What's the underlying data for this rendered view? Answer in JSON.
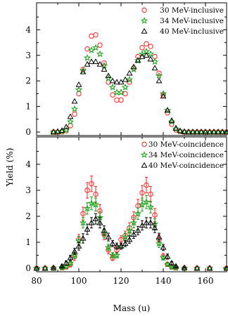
{
  "chart_data": [
    {
      "type": "scatter",
      "panel": "top",
      "xlim": [
        80,
        170
      ],
      "ylim": [
        0,
        5
      ],
      "yticks": [
        "0",
        "1",
        "2",
        "3",
        "4"
      ],
      "xticks": [
        "80",
        "100",
        "120",
        "140",
        "160"
      ],
      "xlabel": "Mass (u)",
      "ylabel": "Yield (%)",
      "legend_position": "top-right",
      "x": [
        88,
        90,
        92,
        94,
        96,
        98,
        100,
        102,
        104,
        106,
        108,
        110,
        112,
        114,
        116,
        118,
        120,
        122,
        124,
        126,
        128,
        130,
        132,
        134,
        136,
        138,
        140,
        142,
        144,
        146,
        148,
        150,
        152,
        154,
        156,
        158,
        160,
        162,
        164,
        166,
        168,
        170
      ],
      "series": [
        {
          "name": "30 MeV-inclusive",
          "marker": "circle",
          "color": "#ff2020",
          "values": [
            0,
            0,
            0.01,
            0.05,
            0.25,
            0.7,
            1.5,
            2.45,
            3.25,
            3.75,
            3.8,
            3.4,
            2.7,
            1.95,
            1.45,
            1.25,
            1.25,
            1.5,
            1.95,
            2.5,
            2.95,
            3.3,
            3.45,
            3.35,
            2.95,
            2.3,
            1.45,
            0.75,
            0.3,
            0.08,
            0.02,
            0,
            0,
            0,
            0,
            0,
            0,
            0,
            0,
            0,
            0,
            0
          ]
        },
        {
          "name": "34 MeV-inclusive",
          "marker": "star",
          "color": "#10a010",
          "values": [
            0,
            0.01,
            0.02,
            0.08,
            0.4,
            0.9,
            1.65,
            2.4,
            2.9,
            3.2,
            3.3,
            3.05,
            2.6,
            2.1,
            1.75,
            1.55,
            1.55,
            1.75,
            2.05,
            2.45,
            2.8,
            3.05,
            3.15,
            3.05,
            2.75,
            2.2,
            1.5,
            0.85,
            0.4,
            0.12,
            0.03,
            0.01,
            0,
            0,
            0,
            0,
            0,
            0,
            0,
            0,
            0,
            0
          ]
        },
        {
          "name": "40 MeV-inclusive",
          "marker": "triangle",
          "color": "#000000",
          "values": [
            0,
            0.02,
            0.06,
            0.2,
            0.6,
            1.2,
            1.85,
            2.35,
            2.65,
            2.75,
            2.75,
            2.65,
            2.45,
            2.2,
            2.0,
            1.95,
            1.95,
            2.05,
            2.3,
            2.55,
            2.8,
            2.95,
            3.0,
            2.85,
            2.5,
            2.0,
            1.4,
            0.85,
            0.45,
            0.15,
            0.05,
            0.01,
            0,
            0,
            0,
            0,
            0,
            0,
            0,
            0,
            0,
            0
          ]
        }
      ]
    },
    {
      "type": "scatter",
      "panel": "bottom",
      "xlim": [
        80,
        170
      ],
      "ylim": [
        0,
        5
      ],
      "yticks": [
        "0",
        "1",
        "2",
        "3",
        "4"
      ],
      "xticks": [
        "80",
        "100",
        "120",
        "140",
        "160"
      ],
      "xlabel": "Mass (u)",
      "ylabel": "Yield (%)",
      "legend_position": "top-right",
      "x": [
        80,
        84,
        88,
        92,
        94,
        96,
        98,
        100,
        102,
        104,
        106,
        108,
        110,
        112,
        114,
        116,
        118,
        120,
        122,
        124,
        126,
        128,
        130,
        132,
        134,
        136,
        138,
        140,
        142,
        144,
        146,
        150,
        156,
        162,
        170
      ],
      "series": [
        {
          "name": "30 MeV-coincidence",
          "marker": "circle",
          "color": "#ff2020",
          "values": [
            0,
            0,
            0,
            0.02,
            0.05,
            0.15,
            0.45,
            1.1,
            2.1,
            3.0,
            3.25,
            2.85,
            2.2,
            1.3,
            0.7,
            0.4,
            0.7,
            1.1,
            1.25,
            1.55,
            1.95,
            2.4,
            2.9,
            3.2,
            2.85,
            2.05,
            1.1,
            0.45,
            0.15,
            0.05,
            0.02,
            0,
            0,
            0,
            0
          ],
          "error": [
            0,
            0,
            0,
            0.05,
            0.05,
            0.1,
            0.15,
            0.2,
            0.25,
            0.3,
            0.3,
            0.3,
            0.25,
            0.2,
            0.15,
            0.1,
            0.12,
            0.15,
            0.18,
            0.2,
            0.22,
            0.25,
            0.28,
            0.3,
            0.3,
            0.25,
            0.2,
            0.12,
            0.08,
            0.05,
            0.03,
            0,
            0,
            0,
            0
          ]
        },
        {
          "name": "34 MeV-coincidence",
          "marker": "star",
          "color": "#10a010",
          "values": [
            0,
            0,
            0,
            0.02,
            0.06,
            0.2,
            0.5,
            1.05,
            1.75,
            2.3,
            2.5,
            2.45,
            1.95,
            1.35,
            0.8,
            0.5,
            0.5,
            0.85,
            1.2,
            1.45,
            1.75,
            2.1,
            2.45,
            2.55,
            2.35,
            1.7,
            0.95,
            0.4,
            0.15,
            0.05,
            0.02,
            0,
            0,
            0,
            0
          ],
          "error": [
            0,
            0,
            0,
            0.04,
            0.05,
            0.08,
            0.12,
            0.18,
            0.2,
            0.22,
            0.25,
            0.25,
            0.22,
            0.18,
            0.12,
            0.1,
            0.1,
            0.12,
            0.15,
            0.18,
            0.2,
            0.22,
            0.25,
            0.25,
            0.22,
            0.2,
            0.15,
            0.08,
            0.05,
            0.03,
            0.02,
            0,
            0,
            0,
            0
          ]
        },
        {
          "name": "40 MeV-coincidence",
          "marker": "triangle",
          "color": "#000000",
          "values": [
            0,
            0,
            0.02,
            0.08,
            0.2,
            0.4,
            0.65,
            0.85,
            1.15,
            1.5,
            1.75,
            1.9,
            1.75,
            1.45,
            1.2,
            0.95,
            0.85,
            0.85,
            0.95,
            1.1,
            1.3,
            1.45,
            1.65,
            1.75,
            1.75,
            1.55,
            1.2,
            0.8,
            0.45,
            0.2,
            0.08,
            0.02,
            0,
            0,
            0
          ],
          "error": [
            0,
            0,
            0.03,
            0.05,
            0.08,
            0.1,
            0.12,
            0.15,
            0.18,
            0.2,
            0.2,
            0.2,
            0.2,
            0.18,
            0.15,
            0.12,
            0.12,
            0.12,
            0.12,
            0.14,
            0.15,
            0.16,
            0.18,
            0.2,
            0.2,
            0.18,
            0.15,
            0.12,
            0.1,
            0.06,
            0.04,
            0.02,
            0,
            0,
            0
          ]
        }
      ]
    }
  ]
}
